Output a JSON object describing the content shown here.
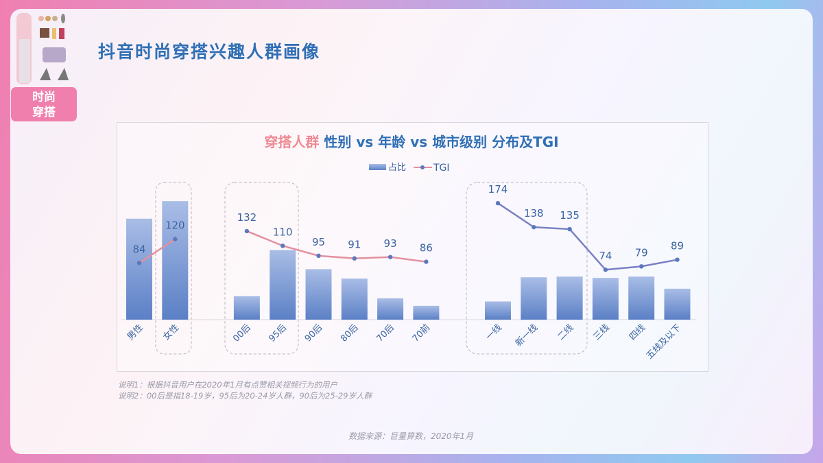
{
  "header": {
    "title": "抖音时尚穿搭兴趣人群画像",
    "tag": "时尚穿搭",
    "tag_line1": "时尚",
    "tag_line2": "穿搭"
  },
  "chart_data": {
    "type": "bar+line",
    "title_highlight": "穿搭人群",
    "title_rest": "性别 vs 年龄 vs 城市级别 分布及TGI",
    "legend": {
      "bar": "占比",
      "line": "TGI",
      "position": "top-center"
    },
    "categories": [
      "男性",
      "女性",
      "00后",
      "95后",
      "90后",
      "80后",
      "70后",
      "70前",
      "一线",
      "新一线",
      "二线",
      "三线",
      "四线",
      "五线及以下"
    ],
    "groups": [
      {
        "name": "gender",
        "members": [
          0,
          1
        ]
      },
      {
        "name": "age",
        "members": [
          2,
          3,
          4,
          5,
          6,
          7
        ]
      },
      {
        "name": "city",
        "members": [
          8,
          9,
          10,
          11,
          12,
          13
        ]
      }
    ],
    "series": [
      {
        "name": "占比",
        "type": "bar",
        "unit": "% (estimated, no axis shown)",
        "values": [
          46,
          54,
          10.7,
          31.7,
          23,
          18.7,
          9.7,
          6.3,
          8.3,
          19.3,
          19.6,
          19,
          19.6,
          14.1
        ]
      },
      {
        "name": "TGI",
        "type": "line",
        "values": [
          84,
          120,
          132,
          110,
          95,
          91,
          93,
          86,
          174,
          138,
          135,
          74,
          79,
          89
        ]
      }
    ],
    "highlighted": [
      "女性",
      "00后",
      "95后",
      "一线",
      "新一线",
      "二线"
    ],
    "y_axis_shown": false,
    "grid": false,
    "colors": {
      "bar_top": "#a9bde6",
      "bar_bottom": "#5b80c6",
      "line_gender_age": "#e4909e",
      "line_city": "#7a80c4",
      "point": "#5a78bd",
      "label": "#3b64a0"
    }
  },
  "notes": [
    "说明1：根据抖音用户在2020年1月有点赞相关视频行为的用户",
    "说明2：00后是指18-19岁，95后为20-24岁人群，90后为25-29岁人群"
  ],
  "source": "数据来源：巨量算数，2020年1月"
}
